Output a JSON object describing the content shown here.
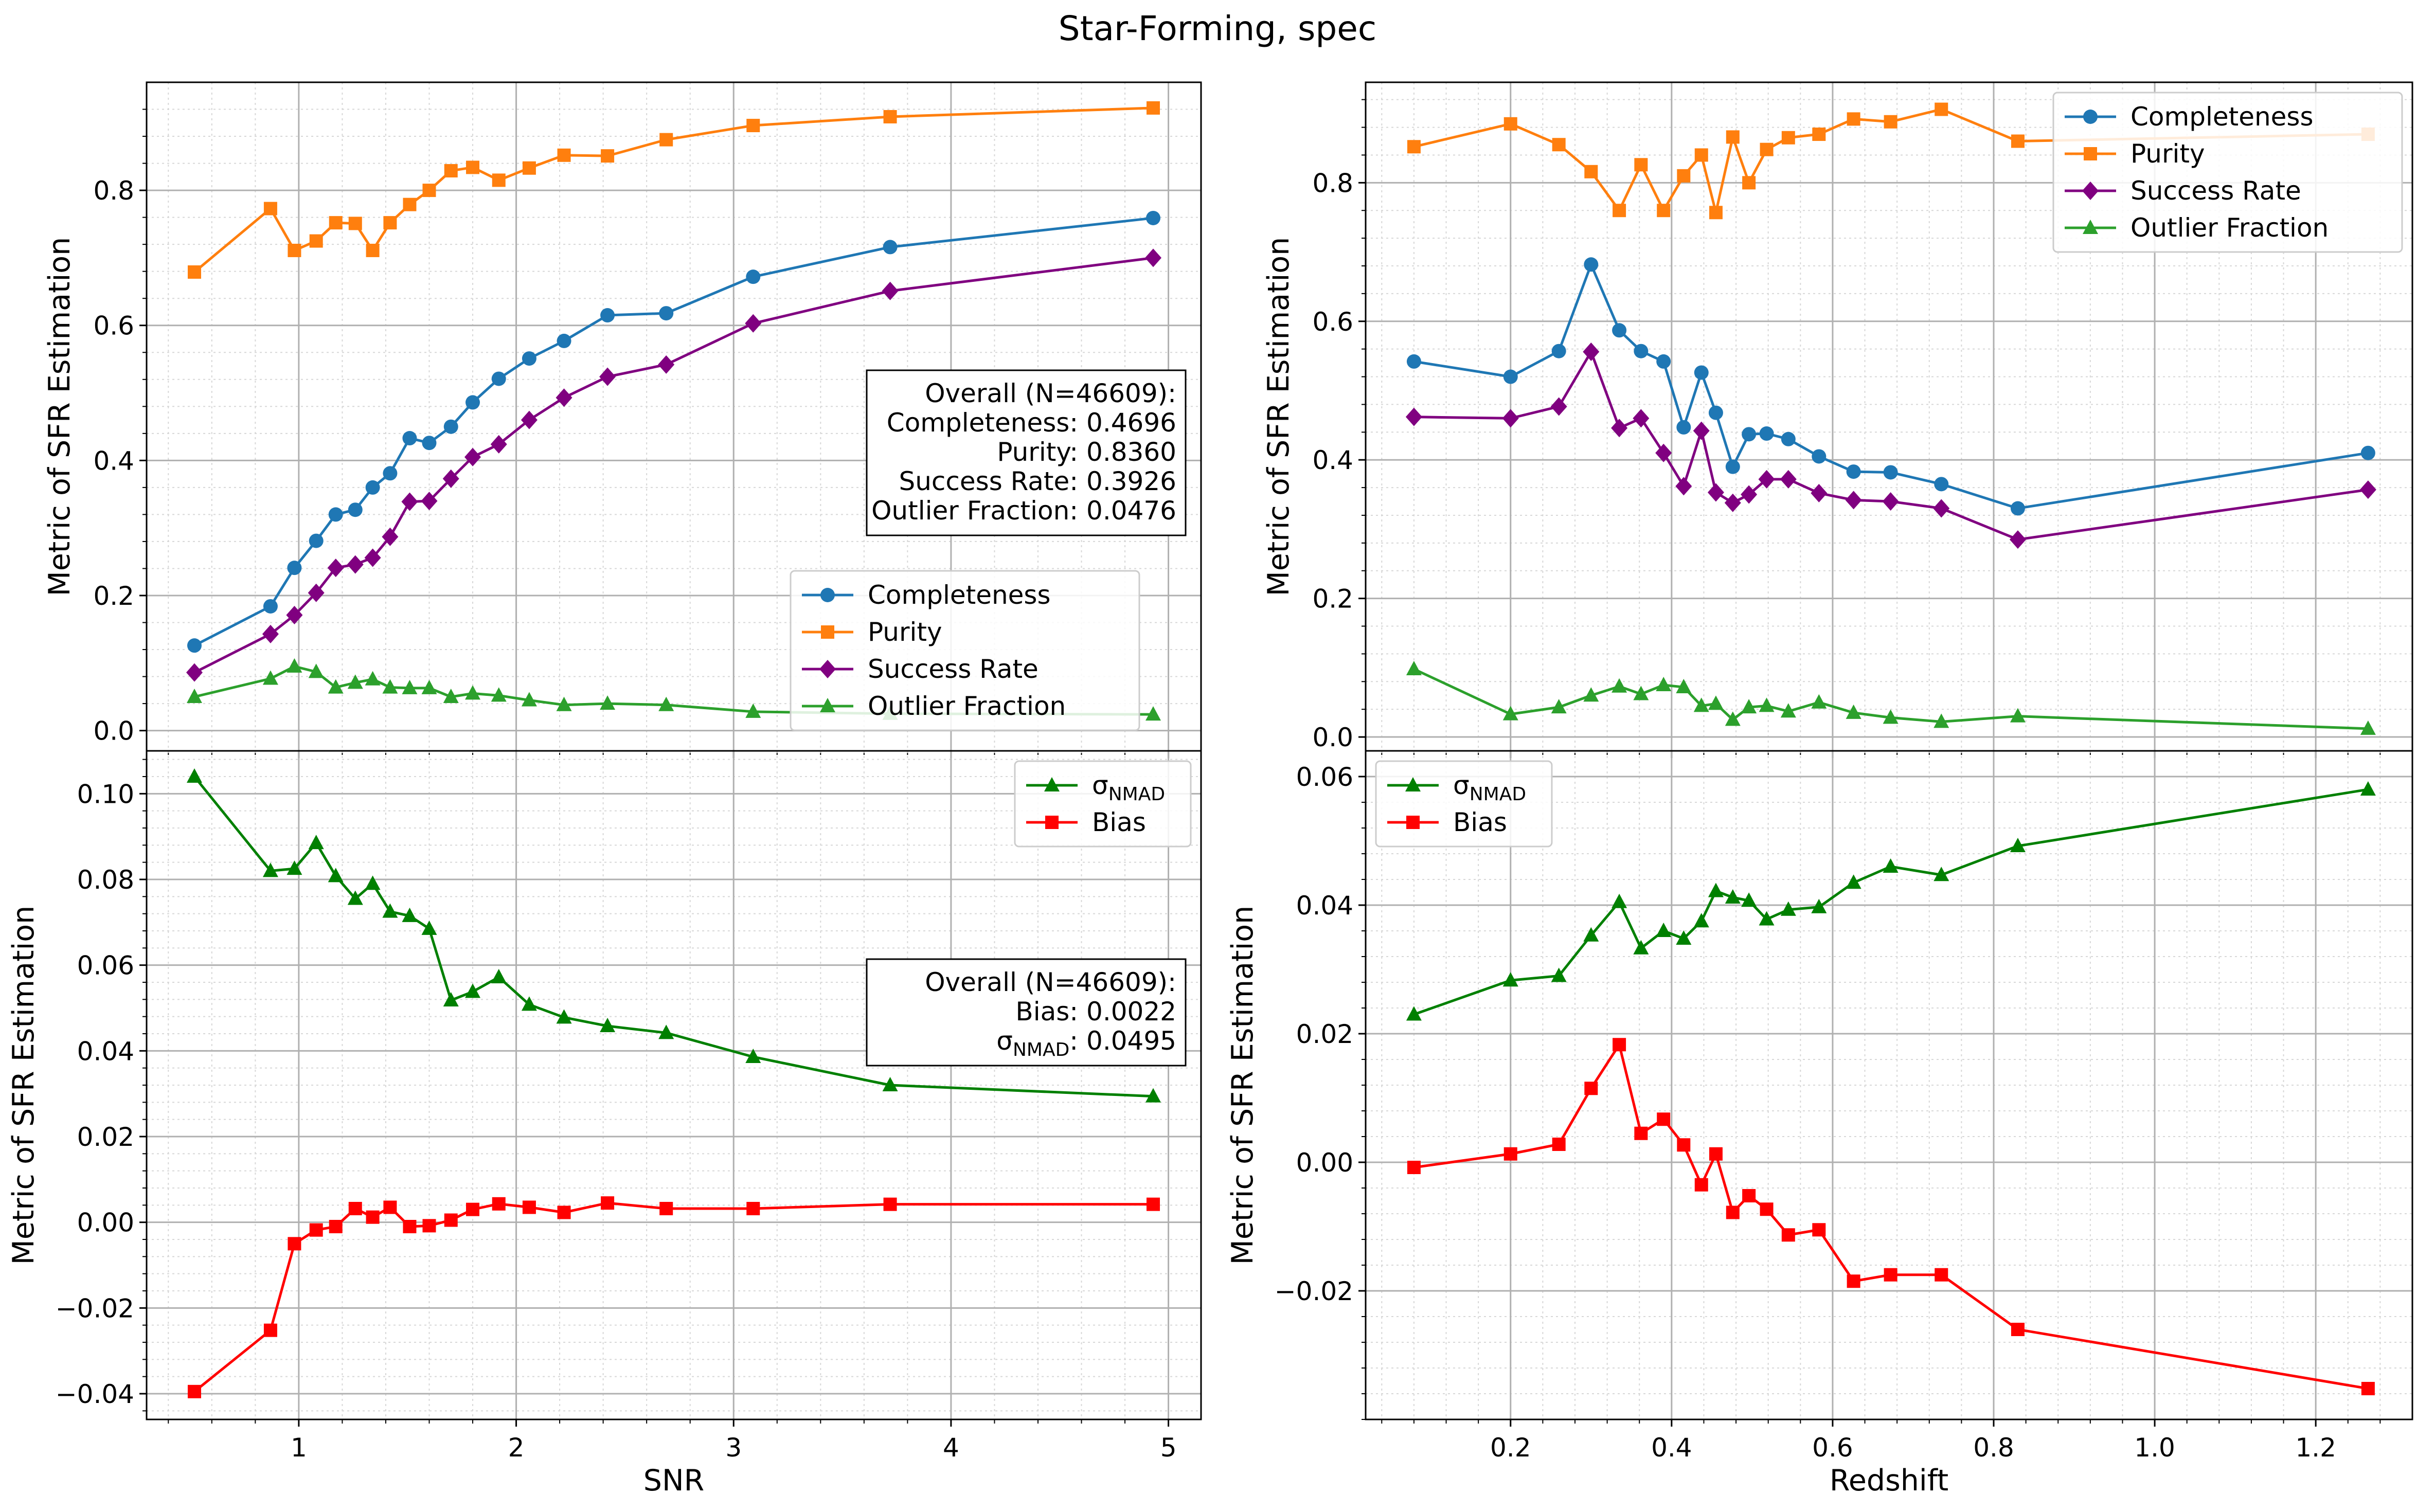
{
  "suptitle": "Star-Forming, spec",
  "chart_data": [
    {
      "id": "snr_top",
      "type": "line",
      "title": "",
      "xlabel": "",
      "ylabel": "Metric of SFR Estimation",
      "xlim": [
        0.3,
        5.15
      ],
      "ylim": [
        -0.03,
        0.96
      ],
      "xticks": [],
      "yticks": [
        {
          "v": 0.0,
          "label": "0.0"
        },
        {
          "v": 0.2,
          "label": "0.2"
        },
        {
          "v": 0.4,
          "label": "0.4"
        },
        {
          "v": 0.6,
          "label": "0.6"
        },
        {
          "v": 0.8,
          "label": "0.8"
        }
      ],
      "x_major_grid": [
        1,
        2,
        3,
        4,
        5
      ],
      "x": [
        0.52,
        0.87,
        0.98,
        1.08,
        1.17,
        1.26,
        1.34,
        1.42,
        1.51,
        1.6,
        1.7,
        1.8,
        1.92,
        2.06,
        2.22,
        2.42,
        2.69,
        3.09,
        3.72,
        4.93
      ],
      "series": [
        {
          "name": "Completeness",
          "color": "#1f77b4",
          "marker": "circle",
          "values": [
            0.126,
            0.184,
            0.241,
            0.281,
            0.32,
            0.327,
            0.36,
            0.381,
            0.433,
            0.426,
            0.45,
            0.486,
            0.521,
            0.551,
            0.577,
            0.615,
            0.618,
            0.672,
            0.716,
            0.759
          ]
        },
        {
          "name": "Purity",
          "color": "#ff7f0e",
          "marker": "square",
          "values": [
            0.679,
            0.773,
            0.711,
            0.725,
            0.752,
            0.751,
            0.711,
            0.752,
            0.779,
            0.8,
            0.829,
            0.834,
            0.815,
            0.833,
            0.852,
            0.851,
            0.875,
            0.896,
            0.909,
            0.922
          ]
        },
        {
          "name": "Success Rate",
          "color": "#800080",
          "marker": "diamond",
          "values": [
            0.086,
            0.143,
            0.171,
            0.204,
            0.241,
            0.246,
            0.256,
            0.287,
            0.339,
            0.34,
            0.373,
            0.405,
            0.424,
            0.46,
            0.493,
            0.524,
            0.542,
            0.603,
            0.651,
            0.7
          ]
        },
        {
          "name": "Outlier Fraction",
          "color": "#2ca02c",
          "marker": "triangle",
          "values": [
            0.05,
            0.077,
            0.095,
            0.087,
            0.064,
            0.071,
            0.076,
            0.064,
            0.063,
            0.063,
            0.05,
            0.055,
            0.052,
            0.045,
            0.038,
            0.04,
            0.038,
            0.028,
            0.025,
            0.024
          ]
        }
      ],
      "legend": {
        "location": "lower-right"
      },
      "stats_box": {
        "location": "center-right",
        "lines": [
          "Overall (N=46609):",
          "Completeness: 0.4696",
          "Purity: 0.8360",
          "Success Rate: 0.3926",
          "Outlier Fraction: 0.0476"
        ]
      }
    },
    {
      "id": "snr_bottom",
      "type": "line",
      "title": "",
      "xlabel": "SNR",
      "ylabel": "Metric of SFR Estimation",
      "xlim": [
        0.3,
        5.15
      ],
      "ylim": [
        -0.046,
        0.11
      ],
      "xticks": [
        {
          "v": 1,
          "label": "1"
        },
        {
          "v": 2,
          "label": "2"
        },
        {
          "v": 3,
          "label": "3"
        },
        {
          "v": 4,
          "label": "4"
        },
        {
          "v": 5,
          "label": "5"
        }
      ],
      "yticks": [
        {
          "v": -0.04,
          "label": "−0.04"
        },
        {
          "v": -0.02,
          "label": "−0.02"
        },
        {
          "v": 0.0,
          "label": "0.00"
        },
        {
          "v": 0.02,
          "label": "0.02"
        },
        {
          "v": 0.04,
          "label": "0.04"
        },
        {
          "v": 0.06,
          "label": "0.06"
        },
        {
          "v": 0.08,
          "label": "0.08"
        },
        {
          "v": 0.1,
          "label": "0.10"
        }
      ],
      "x_major_grid": [
        1,
        2,
        3,
        4,
        5
      ],
      "x": [
        0.52,
        0.87,
        0.98,
        1.08,
        1.17,
        1.26,
        1.34,
        1.42,
        1.51,
        1.6,
        1.7,
        1.8,
        1.92,
        2.06,
        2.22,
        2.42,
        2.69,
        3.09,
        3.72,
        4.93
      ],
      "series": [
        {
          "name": "σNMAD",
          "label_main": "σ",
          "label_sub": "NMAD",
          "color": "#008000",
          "marker": "triangle",
          "values": [
            0.104,
            0.082,
            0.0825,
            0.0885,
            0.0808,
            0.0755,
            0.079,
            0.0725,
            0.0715,
            0.0685,
            0.0518,
            0.0538,
            0.0572,
            0.0508,
            0.0478,
            0.0458,
            0.0442,
            0.0386,
            0.032,
            0.0294
          ]
        },
        {
          "name": "Bias",
          "color": "#ff0000",
          "marker": "square",
          "values": [
            -0.0395,
            -0.0252,
            -0.005,
            -0.0018,
            -0.001,
            0.0032,
            0.0012,
            0.0035,
            -0.001,
            -0.0008,
            0.0005,
            0.003,
            0.0043,
            0.0035,
            0.0023,
            0.0045,
            0.0032,
            0.0032,
            0.0042,
            0.0042
          ]
        }
      ],
      "legend": {
        "location": "upper-right"
      },
      "stats_box": {
        "location": "center-right",
        "lines": [
          "Overall (N=46609):",
          "Bias: 0.0022"
        ],
        "sigma_line": {
          "label_main": "σ",
          "label_sub": "NMAD",
          "value": ": 0.0495"
        }
      }
    },
    {
      "id": "z_top",
      "type": "line",
      "title": "",
      "xlabel": "",
      "ylabel": "Metric of SFR Estimation",
      "xlim": [
        0.02,
        1.32
      ],
      "ylim": [
        -0.02,
        0.945
      ],
      "xticks": [],
      "yticks": [
        {
          "v": 0.0,
          "label": "0.0"
        },
        {
          "v": 0.2,
          "label": "0.2"
        },
        {
          "v": 0.4,
          "label": "0.4"
        },
        {
          "v": 0.6,
          "label": "0.6"
        },
        {
          "v": 0.8,
          "label": "0.8"
        }
      ],
      "x_major_grid": [
        0.2,
        0.4,
        0.6,
        0.8,
        1.0,
        1.2
      ],
      "x": [
        0.08,
        0.2,
        0.26,
        0.3,
        0.335,
        0.362,
        0.39,
        0.415,
        0.437,
        0.455,
        0.476,
        0.496,
        0.518,
        0.545,
        0.583,
        0.626,
        0.672,
        0.735,
        0.83,
        1.265
      ],
      "series": [
        {
          "name": "Completeness",
          "color": "#1f77b4",
          "marker": "circle",
          "values": [
            0.542,
            0.52,
            0.557,
            0.682,
            0.587,
            0.557,
            0.542,
            0.447,
            0.526,
            0.468,
            0.39,
            0.437,
            0.438,
            0.43,
            0.405,
            0.383,
            0.382,
            0.365,
            0.33,
            0.41
          ]
        },
        {
          "name": "Purity",
          "color": "#ff7f0e",
          "marker": "square",
          "values": [
            0.852,
            0.885,
            0.855,
            0.816,
            0.76,
            0.826,
            0.76,
            0.81,
            0.84,
            0.757,
            0.866,
            0.8,
            0.848,
            0.865,
            0.87,
            0.892,
            0.888,
            0.906,
            0.86,
            0.87
          ]
        },
        {
          "name": "Success Rate",
          "color": "#800080",
          "marker": "diamond",
          "values": [
            0.462,
            0.46,
            0.477,
            0.556,
            0.446,
            0.46,
            0.41,
            0.362,
            0.442,
            0.353,
            0.338,
            0.35,
            0.372,
            0.372,
            0.352,
            0.342,
            0.34,
            0.33,
            0.285,
            0.357
          ]
        },
        {
          "name": "Outlier Fraction",
          "color": "#2ca02c",
          "marker": "triangle",
          "values": [
            0.098,
            0.033,
            0.043,
            0.06,
            0.073,
            0.062,
            0.075,
            0.072,
            0.045,
            0.048,
            0.025,
            0.043,
            0.045,
            0.037,
            0.05,
            0.035,
            0.028,
            0.022,
            0.03,
            0.012
          ]
        }
      ],
      "legend": {
        "location": "upper-right"
      }
    },
    {
      "id": "z_bottom",
      "type": "line",
      "title": "",
      "xlabel": "Redshift",
      "ylabel": "Metric of SFR Estimation",
      "xlim": [
        0.02,
        1.32
      ],
      "ylim": [
        -0.04,
        0.064
      ],
      "xticks": [
        {
          "v": 0.2,
          "label": "0.2"
        },
        {
          "v": 0.4,
          "label": "0.4"
        },
        {
          "v": 0.6,
          "label": "0.6"
        },
        {
          "v": 0.8,
          "label": "0.8"
        },
        {
          "v": 1.0,
          "label": "1.0"
        },
        {
          "v": 1.2,
          "label": "1.2"
        }
      ],
      "yticks": [
        {
          "v": -0.02,
          "label": "−0.02"
        },
        {
          "v": 0.0,
          "label": "0.00"
        },
        {
          "v": 0.02,
          "label": "0.02"
        },
        {
          "v": 0.04,
          "label": "0.04"
        },
        {
          "v": 0.06,
          "label": "0.06"
        }
      ],
      "x_major_grid": [
        0.2,
        0.4,
        0.6,
        0.8,
        1.0,
        1.2
      ],
      "x": [
        0.08,
        0.2,
        0.26,
        0.3,
        0.335,
        0.362,
        0.39,
        0.415,
        0.437,
        0.455,
        0.476,
        0.496,
        0.518,
        0.545,
        0.583,
        0.626,
        0.672,
        0.735,
        0.83,
        1.265
      ],
      "series": [
        {
          "name": "σNMAD",
          "label_main": "σ",
          "label_sub": "NMAD",
          "color": "#008000",
          "marker": "triangle",
          "values": [
            0.023,
            0.0283,
            0.029,
            0.0353,
            0.0405,
            0.0333,
            0.036,
            0.0348,
            0.0375,
            0.0422,
            0.0412,
            0.0407,
            0.0378,
            0.0393,
            0.0397,
            0.0435,
            0.046,
            0.0447,
            0.0492,
            0.058
          ]
        },
        {
          "name": "Bias",
          "color": "#ff0000",
          "marker": "square",
          "values": [
            -0.0008,
            0.0013,
            0.0028,
            0.0115,
            0.0183,
            0.0045,
            0.0067,
            0.0027,
            -0.0035,
            0.0013,
            -0.0078,
            -0.0052,
            -0.0073,
            -0.0113,
            -0.0105,
            -0.0185,
            -0.0175,
            -0.0175,
            -0.026,
            -0.0352
          ]
        }
      ],
      "legend": {
        "location": "upper-left"
      }
    }
  ]
}
